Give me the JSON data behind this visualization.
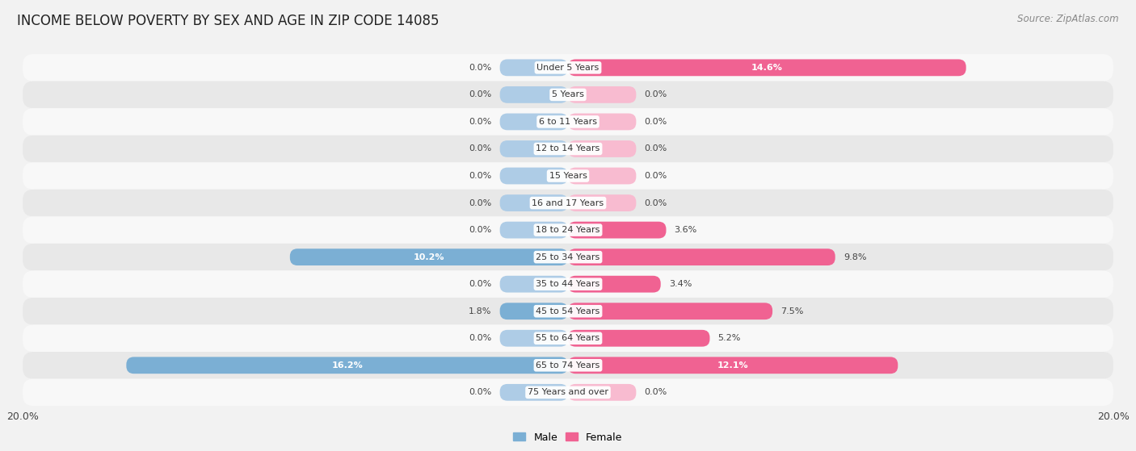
{
  "title": "INCOME BELOW POVERTY BY SEX AND AGE IN ZIP CODE 14085",
  "source": "Source: ZipAtlas.com",
  "categories": [
    "Under 5 Years",
    "5 Years",
    "6 to 11 Years",
    "12 to 14 Years",
    "15 Years",
    "16 and 17 Years",
    "18 to 24 Years",
    "25 to 34 Years",
    "35 to 44 Years",
    "45 to 54 Years",
    "55 to 64 Years",
    "65 to 74 Years",
    "75 Years and over"
  ],
  "male_values": [
    0.0,
    0.0,
    0.0,
    0.0,
    0.0,
    0.0,
    0.0,
    10.2,
    0.0,
    1.8,
    0.0,
    16.2,
    0.0
  ],
  "female_values": [
    14.6,
    0.0,
    0.0,
    0.0,
    0.0,
    0.0,
    3.6,
    9.8,
    3.4,
    7.5,
    5.2,
    12.1,
    0.0
  ],
  "male_color": "#7bafd4",
  "male_color_light": "#aecce6",
  "female_color": "#f06292",
  "female_color_light": "#f8bbd0",
  "male_label": "Male",
  "female_label": "Female",
  "xlim": [
    -20,
    20
  ],
  "xtick_labels": [
    "20.0%",
    "20.0%"
  ],
  "bar_height": 0.62,
  "min_bar": 2.5,
  "background_color": "#f2f2f2",
  "row_color_odd": "#e8e8e8",
  "row_color_even": "#f8f8f8",
  "title_fontsize": 12,
  "source_fontsize": 8.5,
  "label_fontsize": 8,
  "cat_fontsize": 8,
  "axis_label_fontsize": 9
}
